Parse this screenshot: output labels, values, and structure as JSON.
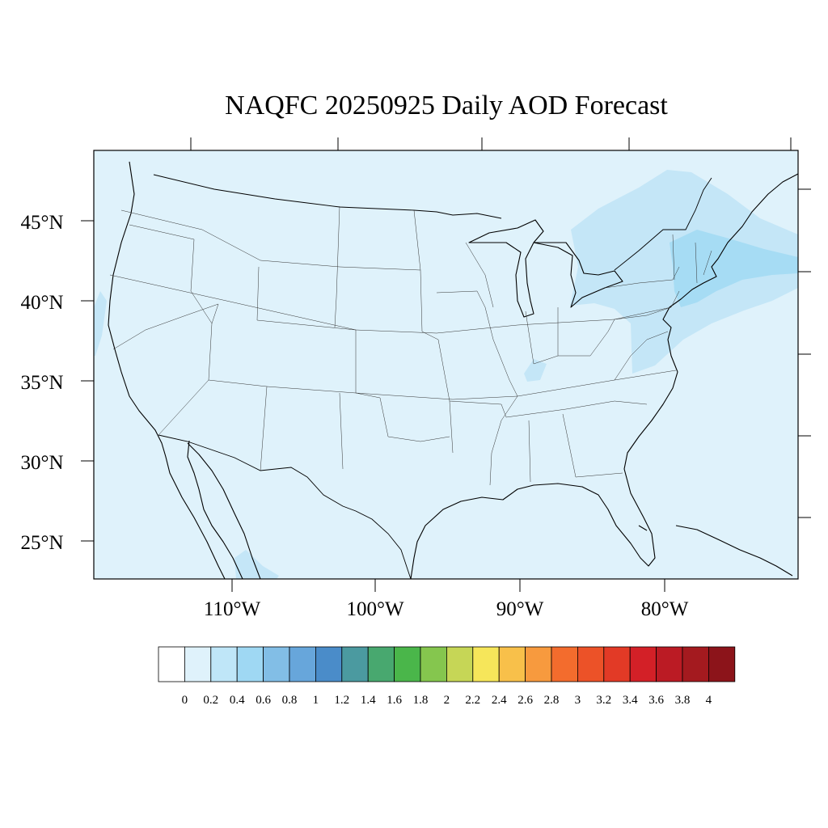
{
  "title": "NAQFC 20250925 Daily AOD Forecast",
  "colors": {
    "background_field": "#dff2fb",
    "plume_light": "#c4e6f7",
    "plume_mid": "#a6dcf4"
  },
  "axes": {
    "lat_labels": [
      "45°N",
      "40°N",
      "35°N",
      "30°N",
      "25°N"
    ],
    "lon_labels": [
      "110°W",
      "100°W",
      "90°W",
      "80°W"
    ]
  },
  "colorbar": {
    "levels": [
      "0",
      "0.2",
      "0.4",
      "0.6",
      "0.8",
      "1",
      "1.2",
      "1.4",
      "1.6",
      "1.8",
      "2",
      "2.2",
      "2.4",
      "2.6",
      "2.8",
      "3",
      "3.2",
      "3.4",
      "3.6",
      "3.8",
      "4"
    ],
    "colors": [
      "#ffffff",
      "#dff2fb",
      "#bfe6f8",
      "#9fd8f3",
      "#82bee6",
      "#67a6db",
      "#4a8cc9",
      "#4b9aa0",
      "#48a86f",
      "#4ab64a",
      "#85c64e",
      "#c6d656",
      "#f6e65a",
      "#f8c04a",
      "#f79a3e",
      "#f36c2d",
      "#ec5228",
      "#e23a26",
      "#d32027",
      "#bb1b24",
      "#a41a1f",
      "#8c141a"
    ]
  },
  "chart_data": {
    "type": "heatmap",
    "title": "NAQFC 20250925 Daily AOD Forecast",
    "variable": "AOD",
    "lon_range": [
      -118.5,
      -69.8
    ],
    "lat_range": [
      22.6,
      49.3
    ],
    "lon_ticks": [
      -110,
      -100,
      -90,
      -80
    ],
    "lat_ticks": [
      45,
      40,
      35,
      30,
      25
    ],
    "field_description_values": {
      "domain_background_range": [
        0.0,
        0.2
      ],
      "northeast_plume_range": [
        0.2,
        0.6
      ],
      "maximum_over_atlantic_near_New_England": 0.6
    }
  }
}
